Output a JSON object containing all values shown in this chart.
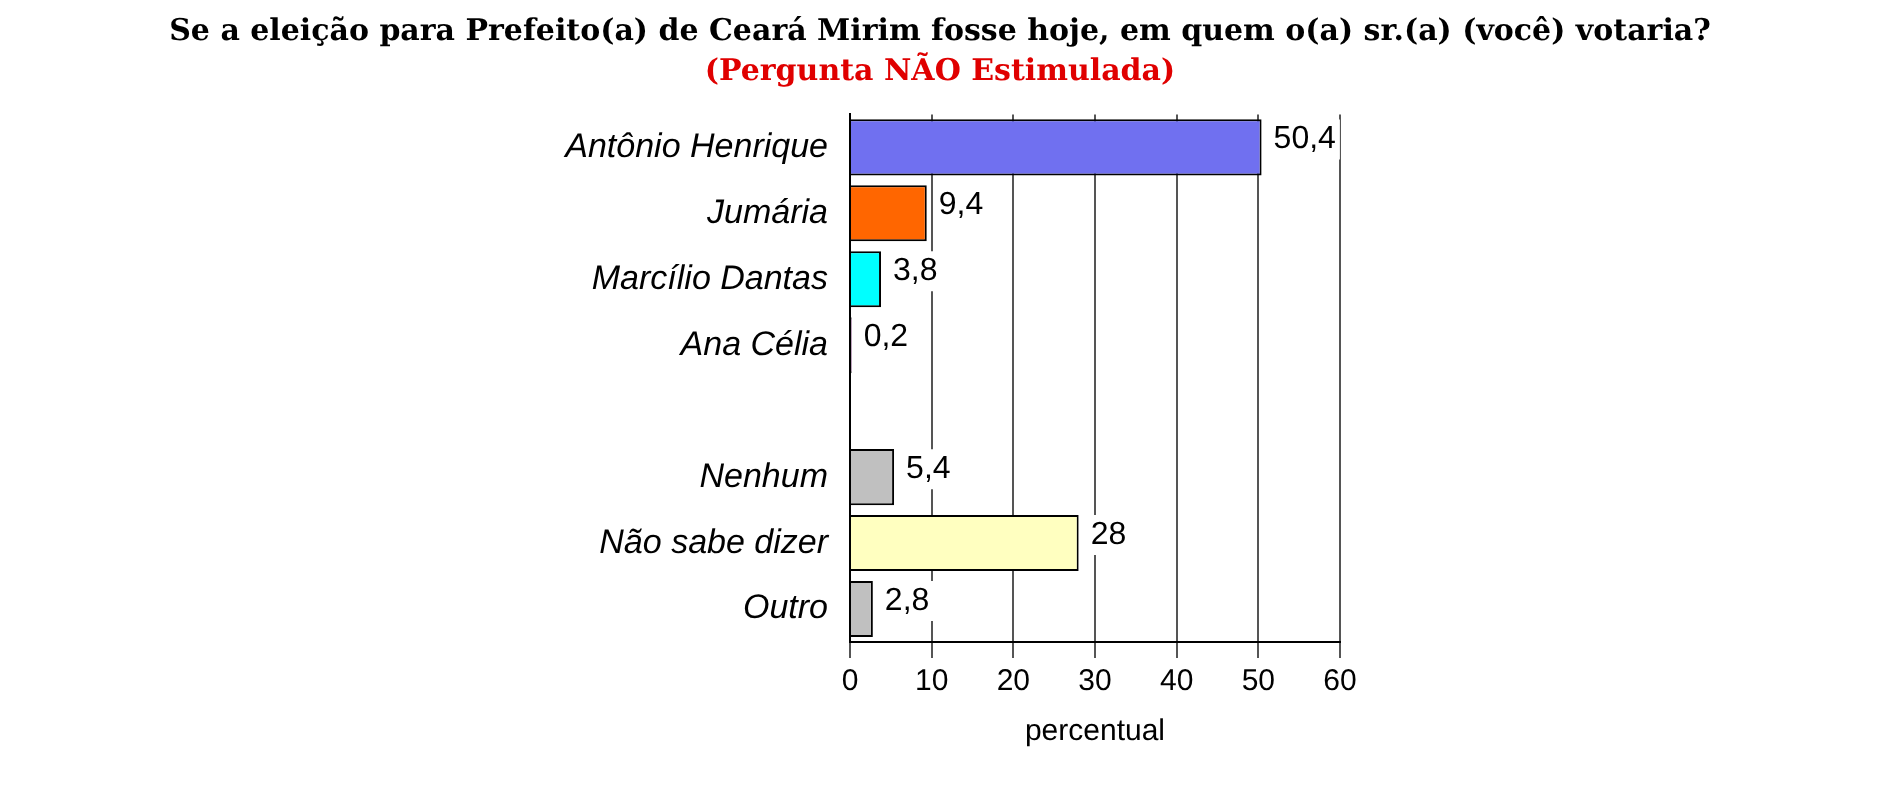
{
  "chart_data": {
    "type": "bar",
    "orientation": "horizontal",
    "title": "Se a eleição para Prefeito(a) de Ceará Mirim fosse hoje, em quem o(a) sr.(a) (você) votaria?",
    "subtitle": "(Pergunta NÃO Estimulada)",
    "xlabel": "percentual",
    "categories": [
      "Antônio Henrique",
      "Jumária",
      "Marcílio Dantas",
      "Ana Célia",
      null,
      "Nenhum",
      "Não sabe dizer",
      "Outro"
    ],
    "values": [
      50.4,
      9.4,
      3.8,
      0.2,
      null,
      5.4,
      28,
      2.8
    ],
    "colors": [
      "#7070f0",
      "#ff6600",
      "#00ffff",
      "#800080",
      "#c0c0c0",
      "#c0c0c0",
      "#ffffc0",
      "#c0c0c0"
    ],
    "value_labels": [
      "50,4",
      "9,4",
      "3,8",
      "0,2",
      null,
      "5,4",
      "28",
      "2,8"
    ],
    "xlim": [
      0,
      60
    ],
    "xticks": [
      0,
      10,
      20,
      30,
      40,
      50,
      60
    ],
    "grid": "x",
    "legend": false
  }
}
